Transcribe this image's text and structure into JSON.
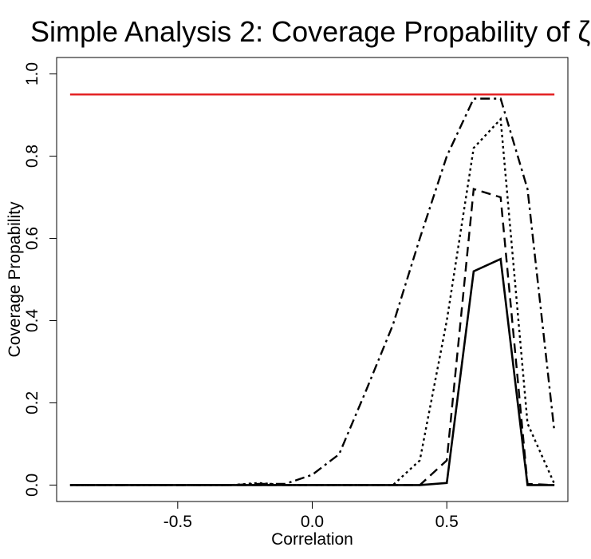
{
  "chart_data": {
    "type": "line",
    "title": "Simple Analysis 2: Coverage Propability of ζ",
    "xlabel": "Correlation",
    "ylabel": "Coverage Propability",
    "xlim": [
      -0.95,
      0.95
    ],
    "ylim": [
      -0.04,
      1.04
    ],
    "xticks": [
      -0.5,
      0.0,
      0.5
    ],
    "xtick_labels": [
      "-0.5",
      "0.0",
      "0.5"
    ],
    "yticks": [
      0.0,
      0.2,
      0.4,
      0.6,
      0.8,
      1.0
    ],
    "ytick_labels": [
      "0.0",
      "0.2",
      "0.4",
      "0.6",
      "0.8",
      "1.0"
    ],
    "grid": false,
    "reference_line": {
      "y": 0.95,
      "color": "#e31a1c"
    },
    "x": [
      -0.9,
      -0.8,
      -0.7,
      -0.6,
      -0.5,
      -0.4,
      -0.3,
      -0.2,
      -0.1,
      0.0,
      0.1,
      0.2,
      0.3,
      0.4,
      0.5,
      0.6,
      0.7,
      0.8,
      0.9
    ],
    "series": [
      {
        "style": "solid",
        "values": [
          0,
          0,
          0,
          0,
          0,
          0,
          0,
          0,
          0,
          0,
          0,
          0,
          0,
          0,
          0.005,
          0.52,
          0.55,
          0,
          0
        ]
      },
      {
        "style": "dashed",
        "values": [
          0,
          0,
          0,
          0,
          0,
          0,
          0,
          0,
          0,
          0,
          0,
          0,
          0,
          0,
          0.06,
          0.72,
          0.7,
          0.003,
          0
        ]
      },
      {
        "style": "dotted",
        "values": [
          0,
          0,
          0,
          0,
          0,
          0,
          0,
          0.005,
          0,
          0,
          0,
          0,
          0,
          0.06,
          0.4,
          0.82,
          0.89,
          0.15,
          0.003
        ]
      },
      {
        "style": "dotdash",
        "values": [
          0,
          0,
          0,
          0,
          0,
          0,
          0,
          0.003,
          0.003,
          0.025,
          0.075,
          0.23,
          0.39,
          0.6,
          0.8,
          0.94,
          0.94,
          0.72,
          0.13
        ]
      }
    ]
  }
}
